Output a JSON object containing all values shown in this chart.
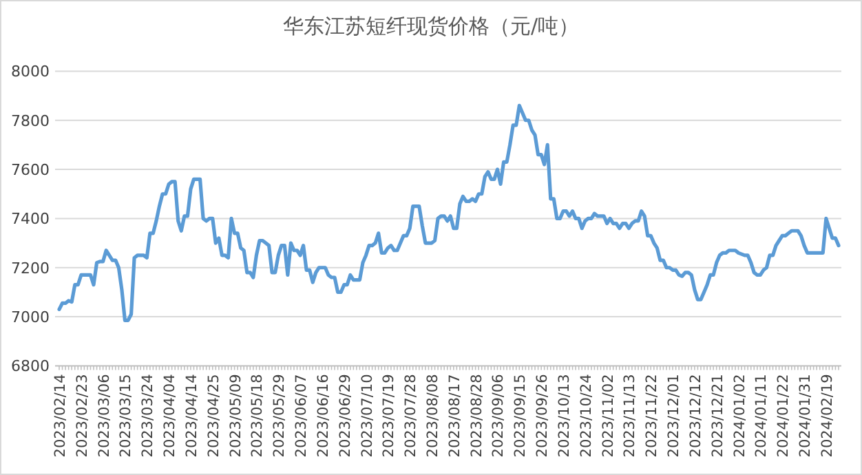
{
  "chart_data": {
    "type": "line",
    "title": "华东江苏短纤现货价格（元/吨）",
    "categories": [
      "2023/02/14",
      null,
      null,
      null,
      null,
      null,
      null,
      "2023/02/23",
      null,
      null,
      null,
      null,
      null,
      null,
      "2023/03/06",
      null,
      null,
      null,
      null,
      null,
      null,
      "2023/03/15",
      null,
      null,
      null,
      null,
      null,
      null,
      "2023/03/24",
      null,
      null,
      null,
      null,
      null,
      null,
      "2023/04/04",
      null,
      null,
      null,
      null,
      null,
      null,
      "2023/04/14",
      null,
      null,
      null,
      null,
      null,
      null,
      "2023/04/25",
      null,
      null,
      null,
      null,
      null,
      null,
      "2023/05/09",
      null,
      null,
      null,
      null,
      null,
      null,
      "2023/05/18",
      null,
      null,
      null,
      null,
      null,
      null,
      "2023/05/29",
      null,
      null,
      null,
      null,
      null,
      null,
      "2023/06/07",
      null,
      null,
      null,
      null,
      null,
      null,
      "2023/06/16",
      null,
      null,
      null,
      null,
      null,
      null,
      "2023/06/29",
      null,
      null,
      null,
      null,
      null,
      null,
      "2023/07/10",
      null,
      null,
      null,
      null,
      null,
      null,
      "2023/07/19",
      null,
      null,
      null,
      null,
      null,
      null,
      "2023/07/28",
      null,
      null,
      null,
      null,
      null,
      null,
      "2023/08/08",
      null,
      null,
      null,
      null,
      null,
      null,
      "2023/08/17",
      null,
      null,
      null,
      null,
      null,
      null,
      "2023/08/28",
      null,
      null,
      null,
      null,
      null,
      null,
      "2023/09/06",
      null,
      null,
      null,
      null,
      null,
      null,
      "2023/09/15",
      null,
      null,
      null,
      null,
      null,
      null,
      "2023/09/26",
      null,
      null,
      null,
      null,
      null,
      null,
      "2023/10/13",
      null,
      null,
      null,
      null,
      null,
      null,
      "2023/10/24",
      null,
      null,
      null,
      null,
      null,
      null,
      "2023/11/02",
      null,
      null,
      null,
      null,
      null,
      null,
      "2023/11/13",
      null,
      null,
      null,
      null,
      null,
      null,
      "2023/11/22",
      null,
      null,
      null,
      null,
      null,
      null,
      "2023/12/01",
      null,
      null,
      null,
      null,
      null,
      null,
      "2023/12/12",
      null,
      null,
      null,
      null,
      null,
      null,
      "2023/12/21",
      null,
      null,
      null,
      null,
      null,
      null,
      "2024/01/02",
      null,
      null,
      null,
      null,
      null,
      null,
      "2024/01/11",
      null,
      null,
      null,
      null,
      null,
      null,
      "2024/01/22",
      null,
      null,
      null,
      null,
      null,
      null,
      "2024/01/31",
      null,
      null,
      null,
      null,
      null,
      null,
      "2024/02/19",
      null,
      null,
      null,
      null
    ],
    "series": [
      {
        "color": "#5b9bd5",
        "values": [
          7030,
          7055,
          7055,
          7065,
          7060,
          7130,
          7130,
          7170,
          7170,
          7170,
          7170,
          7130,
          7220,
          7225,
          7225,
          7270,
          7250,
          7230,
          7230,
          7200,
          7110,
          6985,
          6985,
          7010,
          7240,
          7250,
          7250,
          7250,
          7240,
          7340,
          7340,
          7390,
          7450,
          7500,
          7500,
          7540,
          7550,
          7550,
          7390,
          7350,
          7410,
          7410,
          7520,
          7560,
          7560,
          7560,
          7400,
          7390,
          7400,
          7400,
          7300,
          7320,
          7250,
          7250,
          7240,
          7400,
          7340,
          7340,
          7280,
          7270,
          7180,
          7180,
          7160,
          7250,
          7310,
          7310,
          7300,
          7290,
          7180,
          7180,
          7250,
          7290,
          7290,
          7170,
          7300,
          7270,
          7270,
          7250,
          7290,
          7190,
          7190,
          7140,
          7180,
          7200,
          7200,
          7200,
          7170,
          7160,
          7160,
          7100,
          7100,
          7130,
          7130,
          7170,
          7150,
          7150,
          7150,
          7220,
          7250,
          7290,
          7290,
          7300,
          7340,
          7260,
          7260,
          7280,
          7290,
          7270,
          7270,
          7300,
          7330,
          7330,
          7360,
          7450,
          7450,
          7450,
          7370,
          7300,
          7300,
          7300,
          7310,
          7400,
          7410,
          7410,
          7390,
          7410,
          7360,
          7360,
          7460,
          7490,
          7470,
          7470,
          7480,
          7470,
          7500,
          7500,
          7570,
          7590,
          7560,
          7560,
          7600,
          7540,
          7630,
          7630,
          7700,
          7780,
          7780,
          7860,
          7830,
          7800,
          7800,
          7760,
          7740,
          7660,
          7660,
          7620,
          7700,
          7480,
          7480,
          7400,
          7400,
          7430,
          7430,
          7410,
          7430,
          7400,
          7400,
          7360,
          7390,
          7400,
          7400,
          7420,
          7410,
          7410,
          7410,
          7380,
          7400,
          7380,
          7380,
          7360,
          7380,
          7380,
          7360,
          7380,
          7390,
          7390,
          7430,
          7410,
          7330,
          7330,
          7300,
          7280,
          7230,
          7230,
          7200,
          7200,
          7190,
          7190,
          7170,
          7165,
          7180,
          7180,
          7170,
          7110,
          7070,
          7070,
          7100,
          7130,
          7170,
          7170,
          7220,
          7250,
          7260,
          7260,
          7270,
          7270,
          7270,
          7260,
          7255,
          7250,
          7250,
          7220,
          7180,
          7170,
          7170,
          7190,
          7200,
          7250,
          7250,
          7290,
          7310,
          7330,
          7330,
          7340,
          7350,
          7350,
          7350,
          7330,
          7290,
          7260,
          7260,
          7260,
          7260,
          7260,
          7260,
          7400,
          7360,
          7320,
          7320,
          7290
        ]
      }
    ],
    "ylim": [
      6800,
      8000
    ],
    "yticks": [
      6800,
      7000,
      7200,
      7400,
      7600,
      7800,
      8000
    ],
    "grid": "y",
    "line_style": "solid"
  }
}
